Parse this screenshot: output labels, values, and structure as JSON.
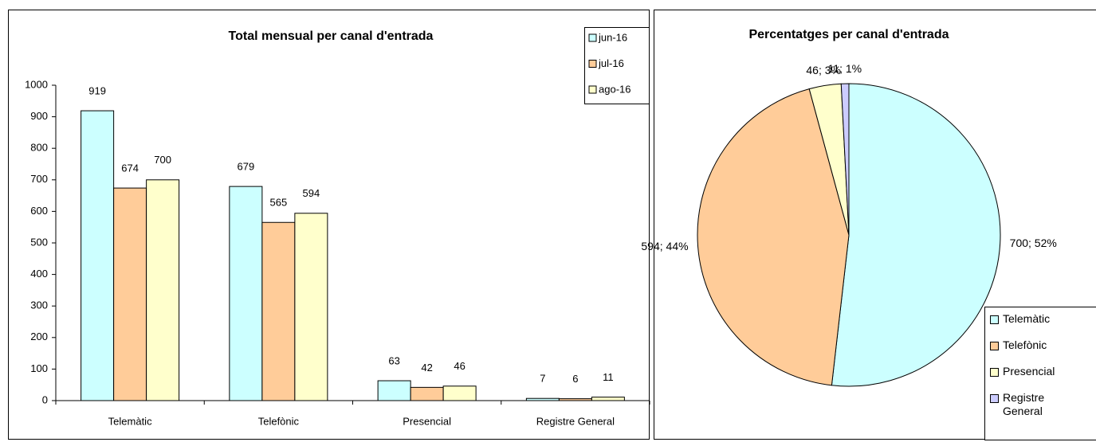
{
  "chart_data": [
    {
      "type": "bar",
      "title": "Total mensual per canal d'entrada",
      "categories": [
        "Telemàtic",
        "Telefònic",
        "Presencial",
        "Registre General"
      ],
      "series": [
        {
          "name": "jun-16",
          "color": "#ccffff",
          "values": [
            919,
            679,
            63,
            7
          ]
        },
        {
          "name": "jul-16",
          "color": "#ffcc99",
          "values": [
            674,
            565,
            42,
            6
          ]
        },
        {
          "name": "ago-16",
          "color": "#ffffcc",
          "values": [
            700,
            594,
            46,
            11
          ]
        }
      ],
      "ylim": [
        0,
        1000
      ],
      "yticks": [
        0,
        100,
        200,
        300,
        400,
        500,
        600,
        700,
        800,
        900,
        1000
      ],
      "grid": false,
      "legend": "top-right"
    },
    {
      "type": "pie",
      "title": "Percentatges per canal d'entrada",
      "categories": [
        "Telemàtic",
        "Telefònic",
        "Presencial",
        "Registre General"
      ],
      "values": [
        700,
        594,
        46,
        11
      ],
      "value_labels": [
        "700; 52%",
        "594; 44%",
        "46; 3%",
        "11; 1%"
      ],
      "colors": [
        "#ccffff",
        "#ffcc99",
        "#ffffcc",
        "#ccccff"
      ],
      "legend": "bottom-right"
    }
  ]
}
